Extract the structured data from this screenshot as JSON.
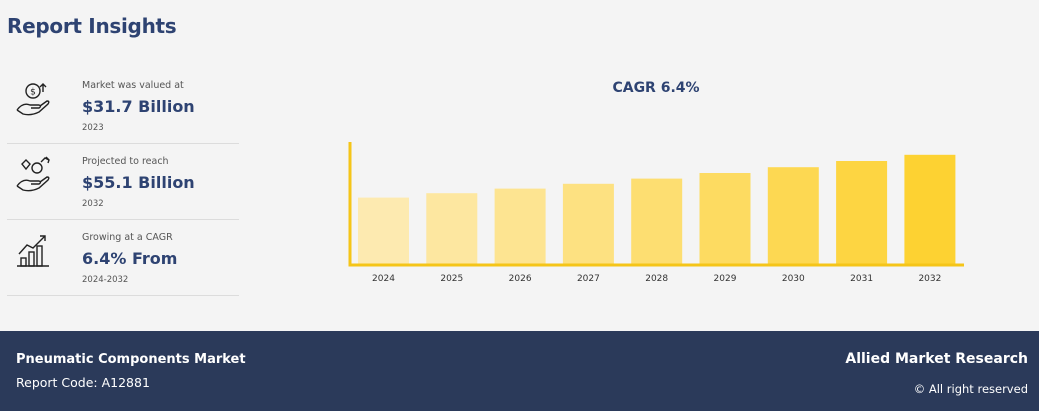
{
  "header": {
    "title": "Report Insights"
  },
  "stats": [
    {
      "label": "Market was valued at",
      "value": "$31.7 Billion",
      "year": "2023",
      "icon": "money-hand-icon"
    },
    {
      "label": "Projected to reach",
      "value": "$55.1 Billion",
      "year": "2032",
      "icon": "diamond-hand-icon"
    },
    {
      "label": "Growing at a CAGR",
      "value": "6.4% From",
      "year": "2024-2032",
      "icon": "growth-chart-icon"
    }
  ],
  "colors": {
    "navy": "#2e4372",
    "footer_bg": "#2b3a5a",
    "axis": "#f5c518",
    "bar_light": "#fdeab0",
    "bar_dark": "#fdd232"
  },
  "chart_data": {
    "type": "bar",
    "title": "CAGR 6.4%",
    "categories": [
      "2024",
      "2025",
      "2026",
      "2027",
      "2028",
      "2029",
      "2030",
      "2031",
      "2032"
    ],
    "values": [
      33.7,
      35.9,
      38.2,
      40.6,
      43.2,
      46.0,
      48.9,
      52.0,
      55.1
    ],
    "ylim": [
      0,
      62
    ],
    "grid": false,
    "legend": "none"
  },
  "footer": {
    "market": "Pneumatic Components Market",
    "report_code": "Report Code: A12881",
    "brand": "Allied Market Research",
    "rights": "© All right reserved"
  }
}
